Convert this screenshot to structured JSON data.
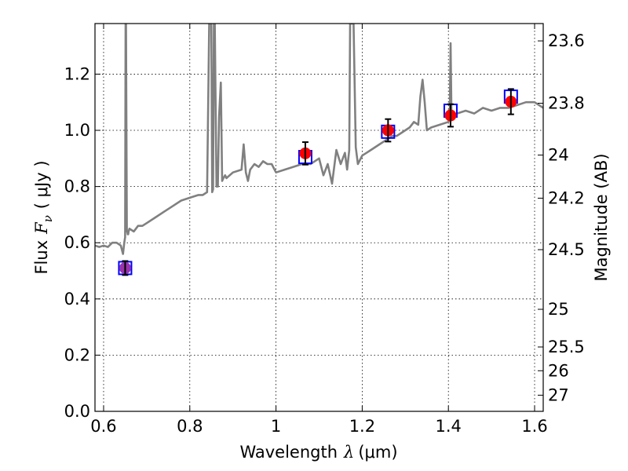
{
  "colors": {
    "spectrum": "#808080",
    "measured": "#ff0000",
    "model_box": "#0000ff",
    "errorbar": "#000000",
    "grid": "#000000",
    "overlap": "#9933aa"
  },
  "chart_data": {
    "type": "line",
    "title": "",
    "xlabel": "Wavelength",
    "xlabel_symbol": "λ",
    "xlabel_unit": "(μm)",
    "ylabel": "Flux",
    "ylabel_symbol": "F",
    "ylabel_symbol_sub": "ν",
    "ylabel_unit": "( μJy )",
    "ylabel_right": "Magnitude (AB)",
    "xlim": [
      0.58,
      1.62
    ],
    "ylim": [
      0.0,
      1.38
    ],
    "grid": true,
    "x_ticks": [
      0.6,
      0.8,
      1.0,
      1.2,
      1.4,
      1.6
    ],
    "x_tick_labels": [
      "0.6",
      "0.8",
      "1",
      "1.2",
      "1.4",
      "1.6"
    ],
    "y_ticks": [
      0.0,
      0.2,
      0.4,
      0.6,
      0.8,
      1.0,
      1.2
    ],
    "y_tick_labels": [
      "0.0",
      "0.2",
      "0.4",
      "0.6",
      "0.8",
      "1.0",
      "1.2"
    ],
    "right_ticks": [
      {
        "label": "23.6",
        "flux": 1.3183
      },
      {
        "label": "23.8",
        "flux": 1.0965
      },
      {
        "label": "24",
        "flux": 0.912
      },
      {
        "label": "24.2",
        "flux": 0.7586
      },
      {
        "label": "24.5",
        "flux": 0.5754
      },
      {
        "label": "25",
        "flux": 0.3631
      },
      {
        "label": "25.5",
        "flux": 0.2291
      },
      {
        "label": "26",
        "flux": 0.1445
      },
      {
        "label": "27",
        "flux": 0.0575
      }
    ],
    "series": [
      {
        "kind": "spectrum",
        "x": [
          0.58,
          0.59,
          0.6,
          0.61,
          0.62,
          0.63,
          0.64,
          0.645,
          0.648,
          0.65,
          0.651,
          0.652,
          0.654,
          0.655,
          0.656,
          0.657,
          0.658,
          0.66,
          0.67,
          0.68,
          0.69,
          0.7,
          0.72,
          0.74,
          0.76,
          0.78,
          0.8,
          0.82,
          0.83,
          0.84,
          0.845,
          0.85,
          0.852,
          0.854,
          0.856,
          0.858,
          0.862,
          0.865,
          0.868,
          0.872,
          0.875,
          0.878,
          0.882,
          0.885,
          0.9,
          0.92,
          0.925,
          0.93,
          0.935,
          0.94,
          0.95,
          0.96,
          0.97,
          0.98,
          0.99,
          1.0,
          1.02,
          1.04,
          1.06,
          1.08,
          1.1,
          1.11,
          1.12,
          1.13,
          1.14,
          1.15,
          1.16,
          1.165,
          1.17,
          1.172,
          1.175,
          1.178,
          1.18,
          1.185,
          1.19,
          1.2,
          1.21,
          1.22,
          1.23,
          1.24,
          1.25,
          1.26,
          1.27,
          1.28,
          1.29,
          1.3,
          1.31,
          1.32,
          1.33,
          1.335,
          1.34,
          1.345,
          1.35,
          1.36,
          1.38,
          1.4,
          1.403,
          1.405,
          1.407,
          1.41,
          1.42,
          1.44,
          1.46,
          1.48,
          1.5,
          1.52,
          1.54,
          1.56,
          1.58,
          1.6,
          1.62
        ],
        "y": [
          0.59,
          0.585,
          0.59,
          0.585,
          0.6,
          0.6,
          0.59,
          0.56,
          0.6,
          0.62,
          1.38,
          1.38,
          0.64,
          0.64,
          0.63,
          0.63,
          0.64,
          0.65,
          0.64,
          0.66,
          0.66,
          0.67,
          0.69,
          0.71,
          0.73,
          0.75,
          0.76,
          0.77,
          0.77,
          0.78,
          1.38,
          1.38,
          0.78,
          0.79,
          1.38,
          1.38,
          0.8,
          0.8,
          1.05,
          1.17,
          0.82,
          0.83,
          0.84,
          0.83,
          0.85,
          0.86,
          0.95,
          0.85,
          0.82,
          0.86,
          0.88,
          0.87,
          0.89,
          0.88,
          0.88,
          0.85,
          0.86,
          0.87,
          0.88,
          0.88,
          0.9,
          0.84,
          0.88,
          0.81,
          0.93,
          0.88,
          0.92,
          0.86,
          0.93,
          1.38,
          1.38,
          1.38,
          1.38,
          0.94,
          0.88,
          0.91,
          0.92,
          0.93,
          0.94,
          0.95,
          0.96,
          0.97,
          0.98,
          0.98,
          0.99,
          1.0,
          1.01,
          1.03,
          1.02,
          1.12,
          1.18,
          1.1,
          1.0,
          1.01,
          1.02,
          1.03,
          1.05,
          1.31,
          1.06,
          1.05,
          1.06,
          1.07,
          1.06,
          1.08,
          1.07,
          1.08,
          1.08,
          1.09,
          1.1,
          1.1,
          1.08
        ]
      },
      {
        "kind": "measured",
        "name": "",
        "x": [
          0.65,
          1.068,
          1.26,
          1.405,
          1.545
        ],
        "y": [
          0.51,
          0.918,
          1.0,
          1.053,
          1.102
        ],
        "yerr": [
          0.025,
          0.04,
          0.04,
          0.04,
          0.045
        ]
      },
      {
        "kind": "model_photometry",
        "name": "",
        "x": [
          0.65,
          1.068,
          1.26,
          1.405,
          1.545
        ],
        "y": [
          0.51,
          0.905,
          0.995,
          1.07,
          1.12
        ]
      }
    ]
  }
}
